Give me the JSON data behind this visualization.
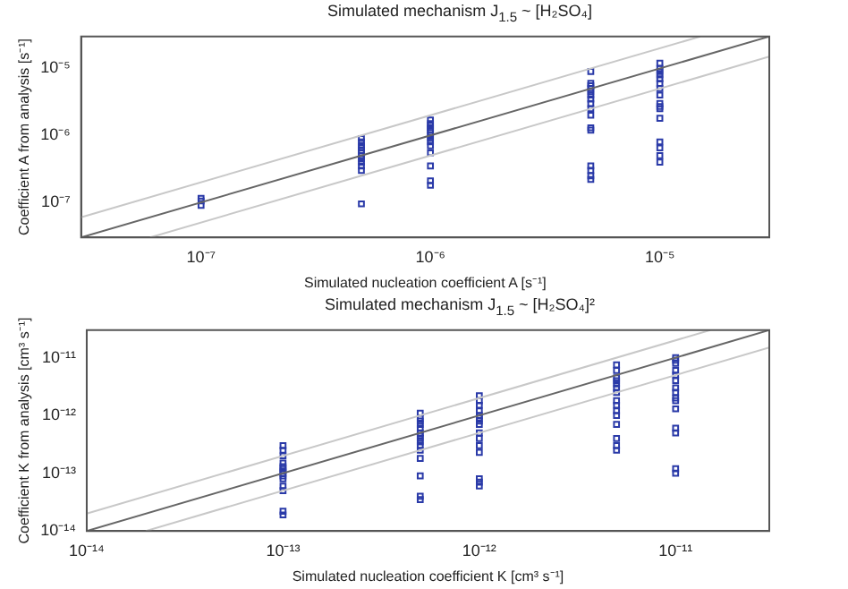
{
  "chart_data": [
    {
      "type": "scatter",
      "title": "Simulated mechanism J$_{1.5}$ ~ [H₂SO₄]",
      "xlabel": "Simulated nucleation coefficient A [s⁻¹]",
      "ylabel": "Coefficient A from analysis [s⁻¹]",
      "log": "xy",
      "grid": false,
      "xlim": [
        3e-08,
        3e-05
      ],
      "ylim": [
        3e-08,
        3e-05
      ],
      "xticks": [
        {
          "value": 1e-07,
          "label": "10⁻⁷"
        },
        {
          "value": 1e-06,
          "label": "10⁻⁶"
        },
        {
          "value": 1e-05,
          "label": "10⁻⁵"
        }
      ],
      "yticks": [
        {
          "value": 1e-07,
          "label": "10⁻⁷"
        },
        {
          "value": 1e-06,
          "label": "10⁻⁶"
        },
        {
          "value": 1e-05,
          "label": "10⁻⁵"
        }
      ],
      "series": [
        {
          "type": "line",
          "marker": "none",
          "color": "#c8c8c8",
          "x": [
            3e-08,
            1.5e-05
          ],
          "values": [
            6e-08,
            3e-05
          ]
        },
        {
          "type": "line",
          "marker": "none",
          "color": "#c8c8c8",
          "x": [
            6e-08,
            3e-05
          ],
          "values": [
            3e-08,
            1.5e-05
          ]
        },
        {
          "type": "line",
          "marker": "none",
          "color": "#666666",
          "x": [
            3e-08,
            3e-05
          ],
          "values": [
            3e-08,
            3e-05
          ]
        },
        {
          "type": "scatter",
          "marker": "square",
          "color": "#2a3aa8",
          "x": [
            1e-07,
            1e-07,
            1e-07,
            5e-07,
            5e-07,
            5e-07,
            5e-07,
            5e-07,
            5e-07,
            5e-07,
            5e-07,
            5e-07,
            5e-07,
            5e-07,
            5e-07,
            1e-06,
            1e-06,
            1e-06,
            1e-06,
            1e-06,
            1e-06,
            1e-06,
            1e-06,
            1e-06,
            1e-06,
            1e-06,
            1e-06,
            1e-06,
            1e-06,
            5e-06,
            5e-06,
            5e-06,
            5e-06,
            5e-06,
            5e-06,
            5e-06,
            5e-06,
            5e-06,
            5e-06,
            5e-06,
            5e-06,
            5e-06,
            5e-06,
            5e-06,
            5e-06,
            1e-05,
            1e-05,
            1e-05,
            1e-05,
            1e-05,
            1e-05,
            1e-05,
            1e-05,
            1e-05,
            1e-05,
            1e-05,
            1e-05,
            1e-05,
            1e-05,
            1e-05,
            1e-05
          ],
          "values": [
            1.15e-07,
            1.05e-07,
            9e-08,
            9e-07,
            8e-07,
            7e-07,
            6.5e-07,
            6e-07,
            5.5e-07,
            5e-07,
            4.5e-07,
            4e-07,
            3.5e-07,
            3e-07,
            9.5e-08,
            1.7e-06,
            1.5e-06,
            1.4e-06,
            1.3e-06,
            1.2e-06,
            1.1e-06,
            1e-06,
            9e-07,
            8e-07,
            7e-07,
            5.5e-07,
            3.5e-07,
            2.1e-07,
            1.8e-07,
            9e-06,
            6e-06,
            5.5e-06,
            5e-06,
            4.5e-06,
            4e-06,
            3.5e-06,
            3e-06,
            2.5e-06,
            2e-06,
            1.3e-06,
            1.2e-06,
            3.5e-07,
            3e-07,
            2.5e-07,
            2.2e-07,
            1.2e-05,
            1e-05,
            9e-06,
            8e-06,
            7e-06,
            6e-06,
            5e-06,
            4e-06,
            3e-06,
            2.7e-06,
            2.5e-06,
            1.8e-06,
            8e-07,
            6.5e-07,
            5e-07,
            4e-07
          ]
        }
      ]
    },
    {
      "type": "scatter",
      "title": "Simulated mechanism J$_{1.5}$ ~ [H₂SO₄]²",
      "xlabel": "Simulated nucleation coefficient K [cm³ s⁻¹]",
      "ylabel": "Coefficient K from analysis [cm³ s⁻¹]",
      "log": "xy",
      "grid": false,
      "xlim": [
        1e-14,
        3e-11
      ],
      "ylim": [
        1e-14,
        3e-11
      ],
      "xticks": [
        {
          "value": 1e-14,
          "label": "10⁻¹⁴"
        },
        {
          "value": 1e-13,
          "label": "10⁻¹³"
        },
        {
          "value": 1e-12,
          "label": "10⁻¹²"
        },
        {
          "value": 1e-11,
          "label": "10⁻¹¹"
        }
      ],
      "yticks": [
        {
          "value": 1e-14,
          "label": "10⁻¹⁴"
        },
        {
          "value": 1e-13,
          "label": "10⁻¹³"
        },
        {
          "value": 1e-12,
          "label": "10⁻¹²"
        },
        {
          "value": 1e-11,
          "label": "10⁻¹¹"
        }
      ],
      "series": [
        {
          "type": "line",
          "marker": "none",
          "color": "#c8c8c8",
          "x": [
            1e-14,
            1.5e-11
          ],
          "values": [
            2e-14,
            3e-11
          ]
        },
        {
          "type": "line",
          "marker": "none",
          "color": "#c8c8c8",
          "x": [
            2e-14,
            3e-11
          ],
          "values": [
            1e-14,
            1.5e-11
          ]
        },
        {
          "type": "line",
          "marker": "none",
          "color": "#666666",
          "x": [
            1e-14,
            3e-11
          ],
          "values": [
            1e-14,
            3e-11
          ]
        },
        {
          "type": "scatter",
          "marker": "square",
          "color": "#2a3aa8",
          "x": [
            1e-13,
            1e-13,
            1e-13,
            1e-13,
            1e-13,
            1e-13,
            1e-13,
            1e-13,
            1e-13,
            1e-13,
            1e-13,
            1e-13,
            1e-13,
            1e-13,
            5e-13,
            5e-13,
            5e-13,
            5e-13,
            5e-13,
            5e-13,
            5e-13,
            5e-13,
            5e-13,
            5e-13,
            5e-13,
            5e-13,
            5e-13,
            5e-13,
            5e-13,
            1e-12,
            1e-12,
            1e-12,
            1e-12,
            1e-12,
            1e-12,
            1e-12,
            1e-12,
            1e-12,
            1e-12,
            1e-12,
            1e-12,
            1e-12,
            1e-12,
            1e-12,
            5e-12,
            5e-12,
            5e-12,
            5e-12,
            5e-12,
            5e-12,
            5e-12,
            5e-12,
            5e-12,
            5e-12,
            5e-12,
            5e-12,
            5e-12,
            5e-12,
            5e-12,
            1e-11,
            1e-11,
            1e-11,
            1e-11,
            1e-11,
            1e-11,
            1e-11,
            1e-11,
            1e-11,
            1e-11,
            1e-11,
            1e-11,
            1e-11,
            1e-11,
            1e-11
          ],
          "values": [
            3e-13,
            2.5e-13,
            2e-13,
            1.5e-13,
            1.3e-13,
            1.2e-13,
            1.1e-13,
            1e-13,
            9e-14,
            8e-14,
            6e-14,
            5e-14,
            2.2e-14,
            1.9e-14,
            1.1e-12,
            9e-13,
            8e-13,
            7e-13,
            6e-13,
            5e-13,
            4.5e-13,
            4e-13,
            3.5e-13,
            3e-13,
            2.5e-13,
            1.8e-13,
            9e-14,
            4e-14,
            3.5e-14,
            2.2e-12,
            1.8e-12,
            1.5e-12,
            1.2e-12,
            1e-12,
            9e-13,
            8e-13,
            7e-13,
            5e-13,
            4e-13,
            3e-13,
            2.3e-13,
            8e-14,
            7e-14,
            6e-14,
            7.5e-12,
            6e-12,
            4.5e-12,
            4e-12,
            3.5e-12,
            3e-12,
            2.5e-12,
            1.8e-12,
            1.5e-12,
            1.2e-12,
            1e-12,
            7e-13,
            4e-13,
            3e-13,
            2.5e-13,
            1e-11,
            9e-12,
            8e-12,
            6e-12,
            5e-12,
            4e-12,
            3e-12,
            2.5e-12,
            2e-12,
            1.8e-12,
            1.3e-12,
            6e-13,
            5e-13,
            1.2e-13,
            1e-13
          ]
        }
      ]
    }
  ]
}
